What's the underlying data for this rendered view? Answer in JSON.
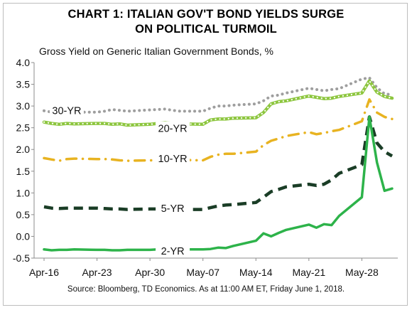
{
  "chart_data": {
    "type": "line",
    "title": "CHART 1: ITALIAN GOV'T BOND YIELDS SURGE\nON POLITICAL TURMOIL",
    "title_lines": [
      "CHART 1: ITALIAN GOV'T BOND YIELDS SURGE",
      "ON POLITICAL TURMOIL"
    ],
    "subtitle": "Gross Yield on Generic Italian Government Bonds, %",
    "source": "Source: Bloomberg, TD Economics. As at 11:00 AM ET, Friday June 1, 2018.",
    "xlabel": "",
    "ylabel": "",
    "ylim": [
      -0.5,
      4.0
    ],
    "yticks": [
      "-0.5",
      "0.0",
      "0.5",
      "1.0",
      "1.5",
      "2.0",
      "2.5",
      "3.0",
      "3.5",
      "4.0"
    ],
    "x_tick_labels": [
      "Apr-16",
      "Apr-23",
      "Apr-30",
      "May-07",
      "May-14",
      "May-21",
      "May-28"
    ],
    "x_start": "2018-04-16",
    "x_end": "2018-06-01",
    "grid": false,
    "series": [
      {
        "name": "30-YR",
        "color": "#9e9e9e",
        "style": "dotted",
        "points": [
          [
            "2018-04-16",
            2.89
          ],
          [
            "2018-04-17",
            2.86
          ],
          [
            "2018-04-18",
            2.86
          ],
          [
            "2018-04-19",
            2.87
          ],
          [
            "2018-04-20",
            2.86
          ],
          [
            "2018-04-23",
            2.86
          ],
          [
            "2018-04-24",
            2.88
          ],
          [
            "2018-04-25",
            2.92
          ],
          [
            "2018-04-26",
            2.9
          ],
          [
            "2018-04-27",
            2.88
          ],
          [
            "2018-04-30",
            2.91
          ],
          [
            "2018-05-01",
            2.92
          ],
          [
            "2018-05-02",
            2.93
          ],
          [
            "2018-05-03",
            2.9
          ],
          [
            "2018-05-04",
            2.88
          ],
          [
            "2018-05-07",
            2.88
          ],
          [
            "2018-05-08",
            2.95
          ],
          [
            "2018-05-09",
            3.0
          ],
          [
            "2018-05-10",
            3.0
          ],
          [
            "2018-05-11",
            3.02
          ],
          [
            "2018-05-14",
            3.05
          ],
          [
            "2018-05-15",
            3.12
          ],
          [
            "2018-05-16",
            3.23
          ],
          [
            "2018-05-17",
            3.25
          ],
          [
            "2018-05-18",
            3.3
          ],
          [
            "2018-05-21",
            3.41
          ],
          [
            "2018-05-22",
            3.38
          ],
          [
            "2018-05-23",
            3.35
          ],
          [
            "2018-05-24",
            3.38
          ],
          [
            "2018-05-25",
            3.4
          ],
          [
            "2018-05-28",
            3.62
          ],
          [
            "2018-05-29",
            3.65
          ],
          [
            "2018-05-30",
            3.42
          ],
          [
            "2018-05-31",
            3.28
          ],
          [
            "2018-06-01",
            3.26
          ]
        ]
      },
      {
        "name": "20-YR",
        "color": "#8dc63f",
        "style": "solid-dotted",
        "points": [
          [
            "2018-04-16",
            2.63
          ],
          [
            "2018-04-17",
            2.6
          ],
          [
            "2018-04-18",
            2.58
          ],
          [
            "2018-04-19",
            2.6
          ],
          [
            "2018-04-20",
            2.59
          ],
          [
            "2018-04-23",
            2.6
          ],
          [
            "2018-04-24",
            2.6
          ],
          [
            "2018-04-25",
            2.58
          ],
          [
            "2018-04-26",
            2.59
          ],
          [
            "2018-04-27",
            2.56
          ],
          [
            "2018-04-30",
            2.58
          ],
          [
            "2018-05-01",
            2.6
          ],
          [
            "2018-05-02",
            2.62
          ],
          [
            "2018-05-03",
            2.6
          ],
          [
            "2018-05-04",
            2.59
          ],
          [
            "2018-05-07",
            2.58
          ],
          [
            "2018-05-08",
            2.68
          ],
          [
            "2018-05-09",
            2.7
          ],
          [
            "2018-05-10",
            2.7
          ],
          [
            "2018-05-11",
            2.72
          ],
          [
            "2018-05-14",
            2.73
          ],
          [
            "2018-05-15",
            2.85
          ],
          [
            "2018-05-16",
            3.05
          ],
          [
            "2018-05-17",
            3.1
          ],
          [
            "2018-05-18",
            3.12
          ],
          [
            "2018-05-21",
            3.23
          ],
          [
            "2018-05-22",
            3.2
          ],
          [
            "2018-05-23",
            3.17
          ],
          [
            "2018-05-24",
            3.18
          ],
          [
            "2018-05-25",
            3.22
          ],
          [
            "2018-05-28",
            3.3
          ],
          [
            "2018-05-29",
            3.58
          ],
          [
            "2018-05-30",
            3.32
          ],
          [
            "2018-05-31",
            3.22
          ],
          [
            "2018-06-01",
            3.18
          ]
        ]
      },
      {
        "name": "10-YR",
        "color": "#e8b321",
        "style": "dash-dot",
        "points": [
          [
            "2018-04-16",
            1.8
          ],
          [
            "2018-04-17",
            1.77
          ],
          [
            "2018-04-18",
            1.74
          ],
          [
            "2018-04-19",
            1.78
          ],
          [
            "2018-04-20",
            1.79
          ],
          [
            "2018-04-23",
            1.78
          ],
          [
            "2018-04-24",
            1.78
          ],
          [
            "2018-04-25",
            1.77
          ],
          [
            "2018-04-26",
            1.75
          ],
          [
            "2018-04-27",
            1.74
          ],
          [
            "2018-04-30",
            1.75
          ],
          [
            "2018-05-01",
            1.75
          ],
          [
            "2018-05-02",
            1.78
          ],
          [
            "2018-05-03",
            1.77
          ],
          [
            "2018-05-04",
            1.76
          ],
          [
            "2018-05-07",
            1.75
          ],
          [
            "2018-05-08",
            1.83
          ],
          [
            "2018-05-09",
            1.88
          ],
          [
            "2018-05-10",
            1.9
          ],
          [
            "2018-05-11",
            1.9
          ],
          [
            "2018-05-14",
            1.95
          ],
          [
            "2018-05-15",
            2.1
          ],
          [
            "2018-05-16",
            2.2
          ],
          [
            "2018-05-17",
            2.25
          ],
          [
            "2018-05-18",
            2.31
          ],
          [
            "2018-05-21",
            2.4
          ],
          [
            "2018-05-22",
            2.35
          ],
          [
            "2018-05-23",
            2.38
          ],
          [
            "2018-05-24",
            2.42
          ],
          [
            "2018-05-25",
            2.45
          ],
          [
            "2018-05-28",
            2.65
          ],
          [
            "2018-05-29",
            3.15
          ],
          [
            "2018-05-30",
            2.85
          ],
          [
            "2018-05-31",
            2.75
          ],
          [
            "2018-06-01",
            2.7
          ]
        ]
      },
      {
        "name": "5-YR",
        "color": "#1a3d26",
        "style": "dashed",
        "points": [
          [
            "2018-04-16",
            0.68
          ],
          [
            "2018-04-17",
            0.65
          ],
          [
            "2018-04-18",
            0.64
          ],
          [
            "2018-04-19",
            0.65
          ],
          [
            "2018-04-20",
            0.65
          ],
          [
            "2018-04-23",
            0.65
          ],
          [
            "2018-04-24",
            0.64
          ],
          [
            "2018-04-25",
            0.63
          ],
          [
            "2018-04-26",
            0.63
          ],
          [
            "2018-04-27",
            0.62
          ],
          [
            "2018-04-30",
            0.63
          ],
          [
            "2018-05-01",
            0.63
          ],
          [
            "2018-05-02",
            0.64
          ],
          [
            "2018-05-03",
            0.63
          ],
          [
            "2018-05-04",
            0.62
          ],
          [
            "2018-05-07",
            0.62
          ],
          [
            "2018-05-08",
            0.66
          ],
          [
            "2018-05-09",
            0.7
          ],
          [
            "2018-05-10",
            0.72
          ],
          [
            "2018-05-11",
            0.73
          ],
          [
            "2018-05-14",
            0.78
          ],
          [
            "2018-05-15",
            0.9
          ],
          [
            "2018-05-16",
            1.03
          ],
          [
            "2018-05-17",
            1.08
          ],
          [
            "2018-05-18",
            1.14
          ],
          [
            "2018-05-21",
            1.2
          ],
          [
            "2018-05-22",
            1.17
          ],
          [
            "2018-05-23",
            1.2
          ],
          [
            "2018-05-24",
            1.3
          ],
          [
            "2018-05-25",
            1.45
          ],
          [
            "2018-05-28",
            1.65
          ],
          [
            "2018-05-29",
            2.75
          ],
          [
            "2018-05-30",
            2.15
          ],
          [
            "2018-05-31",
            1.95
          ],
          [
            "2018-06-01",
            1.85
          ]
        ]
      },
      {
        "name": "2-YR",
        "color": "#2db34a",
        "style": "solid",
        "points": [
          [
            "2018-04-16",
            -0.3
          ],
          [
            "2018-04-17",
            -0.32
          ],
          [
            "2018-04-18",
            -0.31
          ],
          [
            "2018-04-19",
            -0.31
          ],
          [
            "2018-04-20",
            -0.3
          ],
          [
            "2018-04-23",
            -0.31
          ],
          [
            "2018-04-24",
            -0.31
          ],
          [
            "2018-04-25",
            -0.32
          ],
          [
            "2018-04-26",
            -0.32
          ],
          [
            "2018-04-27",
            -0.31
          ],
          [
            "2018-04-30",
            -0.31
          ],
          [
            "2018-05-01",
            -0.3
          ],
          [
            "2018-05-02",
            -0.31
          ],
          [
            "2018-05-03",
            -0.31
          ],
          [
            "2018-05-04",
            -0.3
          ],
          [
            "2018-05-07",
            -0.3
          ],
          [
            "2018-05-08",
            -0.29
          ],
          [
            "2018-05-09",
            -0.26
          ],
          [
            "2018-05-10",
            -0.27
          ],
          [
            "2018-05-11",
            -0.22
          ],
          [
            "2018-05-14",
            -0.1
          ],
          [
            "2018-05-15",
            0.07
          ],
          [
            "2018-05-16",
            0.0
          ],
          [
            "2018-05-17",
            0.08
          ],
          [
            "2018-05-18",
            0.15
          ],
          [
            "2018-05-21",
            0.27
          ],
          [
            "2018-05-22",
            0.2
          ],
          [
            "2018-05-23",
            0.28
          ],
          [
            "2018-05-24",
            0.26
          ],
          [
            "2018-05-25",
            0.47
          ],
          [
            "2018-05-28",
            0.9
          ],
          [
            "2018-05-29",
            2.75
          ],
          [
            "2018-05-30",
            1.7
          ],
          [
            "2018-05-31",
            1.05
          ],
          [
            "2018-06-01",
            1.1
          ]
        ]
      }
    ],
    "series_labels": [
      {
        "name": "30-YR",
        "date": "2018-04-19",
        "value": 2.86
      },
      {
        "name": "20-YR",
        "date": "2018-05-03",
        "value": 2.45
      },
      {
        "name": "10-YR",
        "date": "2018-05-03",
        "value": 1.76
      },
      {
        "name": "5-YR",
        "date": "2018-05-03",
        "value": 0.61
      },
      {
        "name": "2-YR",
        "date": "2018-05-03",
        "value": -0.37
      }
    ]
  }
}
